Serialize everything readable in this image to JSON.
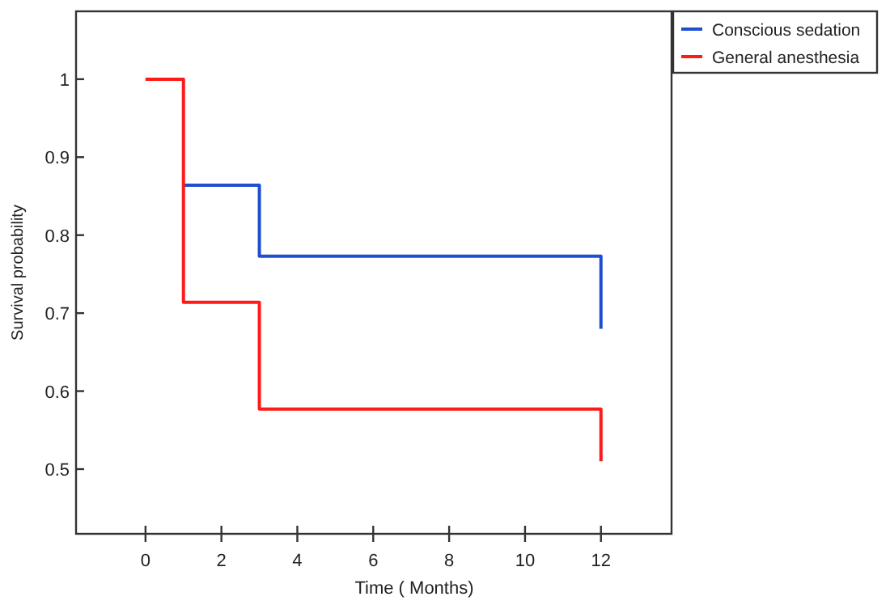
{
  "chart_data": {
    "type": "step",
    "xlabel": "Time ( Months)",
    "ylabel": "Survival probability",
    "xlim": [
      -1.83,
      13.86
    ],
    "ylim": [
      0.417,
      1.087
    ],
    "xticks": [
      0,
      2,
      4,
      6,
      8,
      10,
      12
    ],
    "yticks": [
      0.5,
      0.6,
      0.7,
      0.8,
      0.9,
      1
    ],
    "grid": false,
    "legend": "top right",
    "marker": "none",
    "line_style": "solid",
    "series": [
      {
        "name": "Conscious sedation",
        "color": "#1f4fd0",
        "x": [
          1,
          3,
          12,
          12
        ],
        "values": [
          0.864,
          0.773,
          0.773,
          0.68
        ]
      },
      {
        "name": "General anesthesia",
        "color": "#ff1a1a",
        "x": [
          0,
          1,
          3,
          12,
          12
        ],
        "values": [
          1,
          0.714,
          0.577,
          0.577,
          0.51
        ]
      }
    ]
  }
}
